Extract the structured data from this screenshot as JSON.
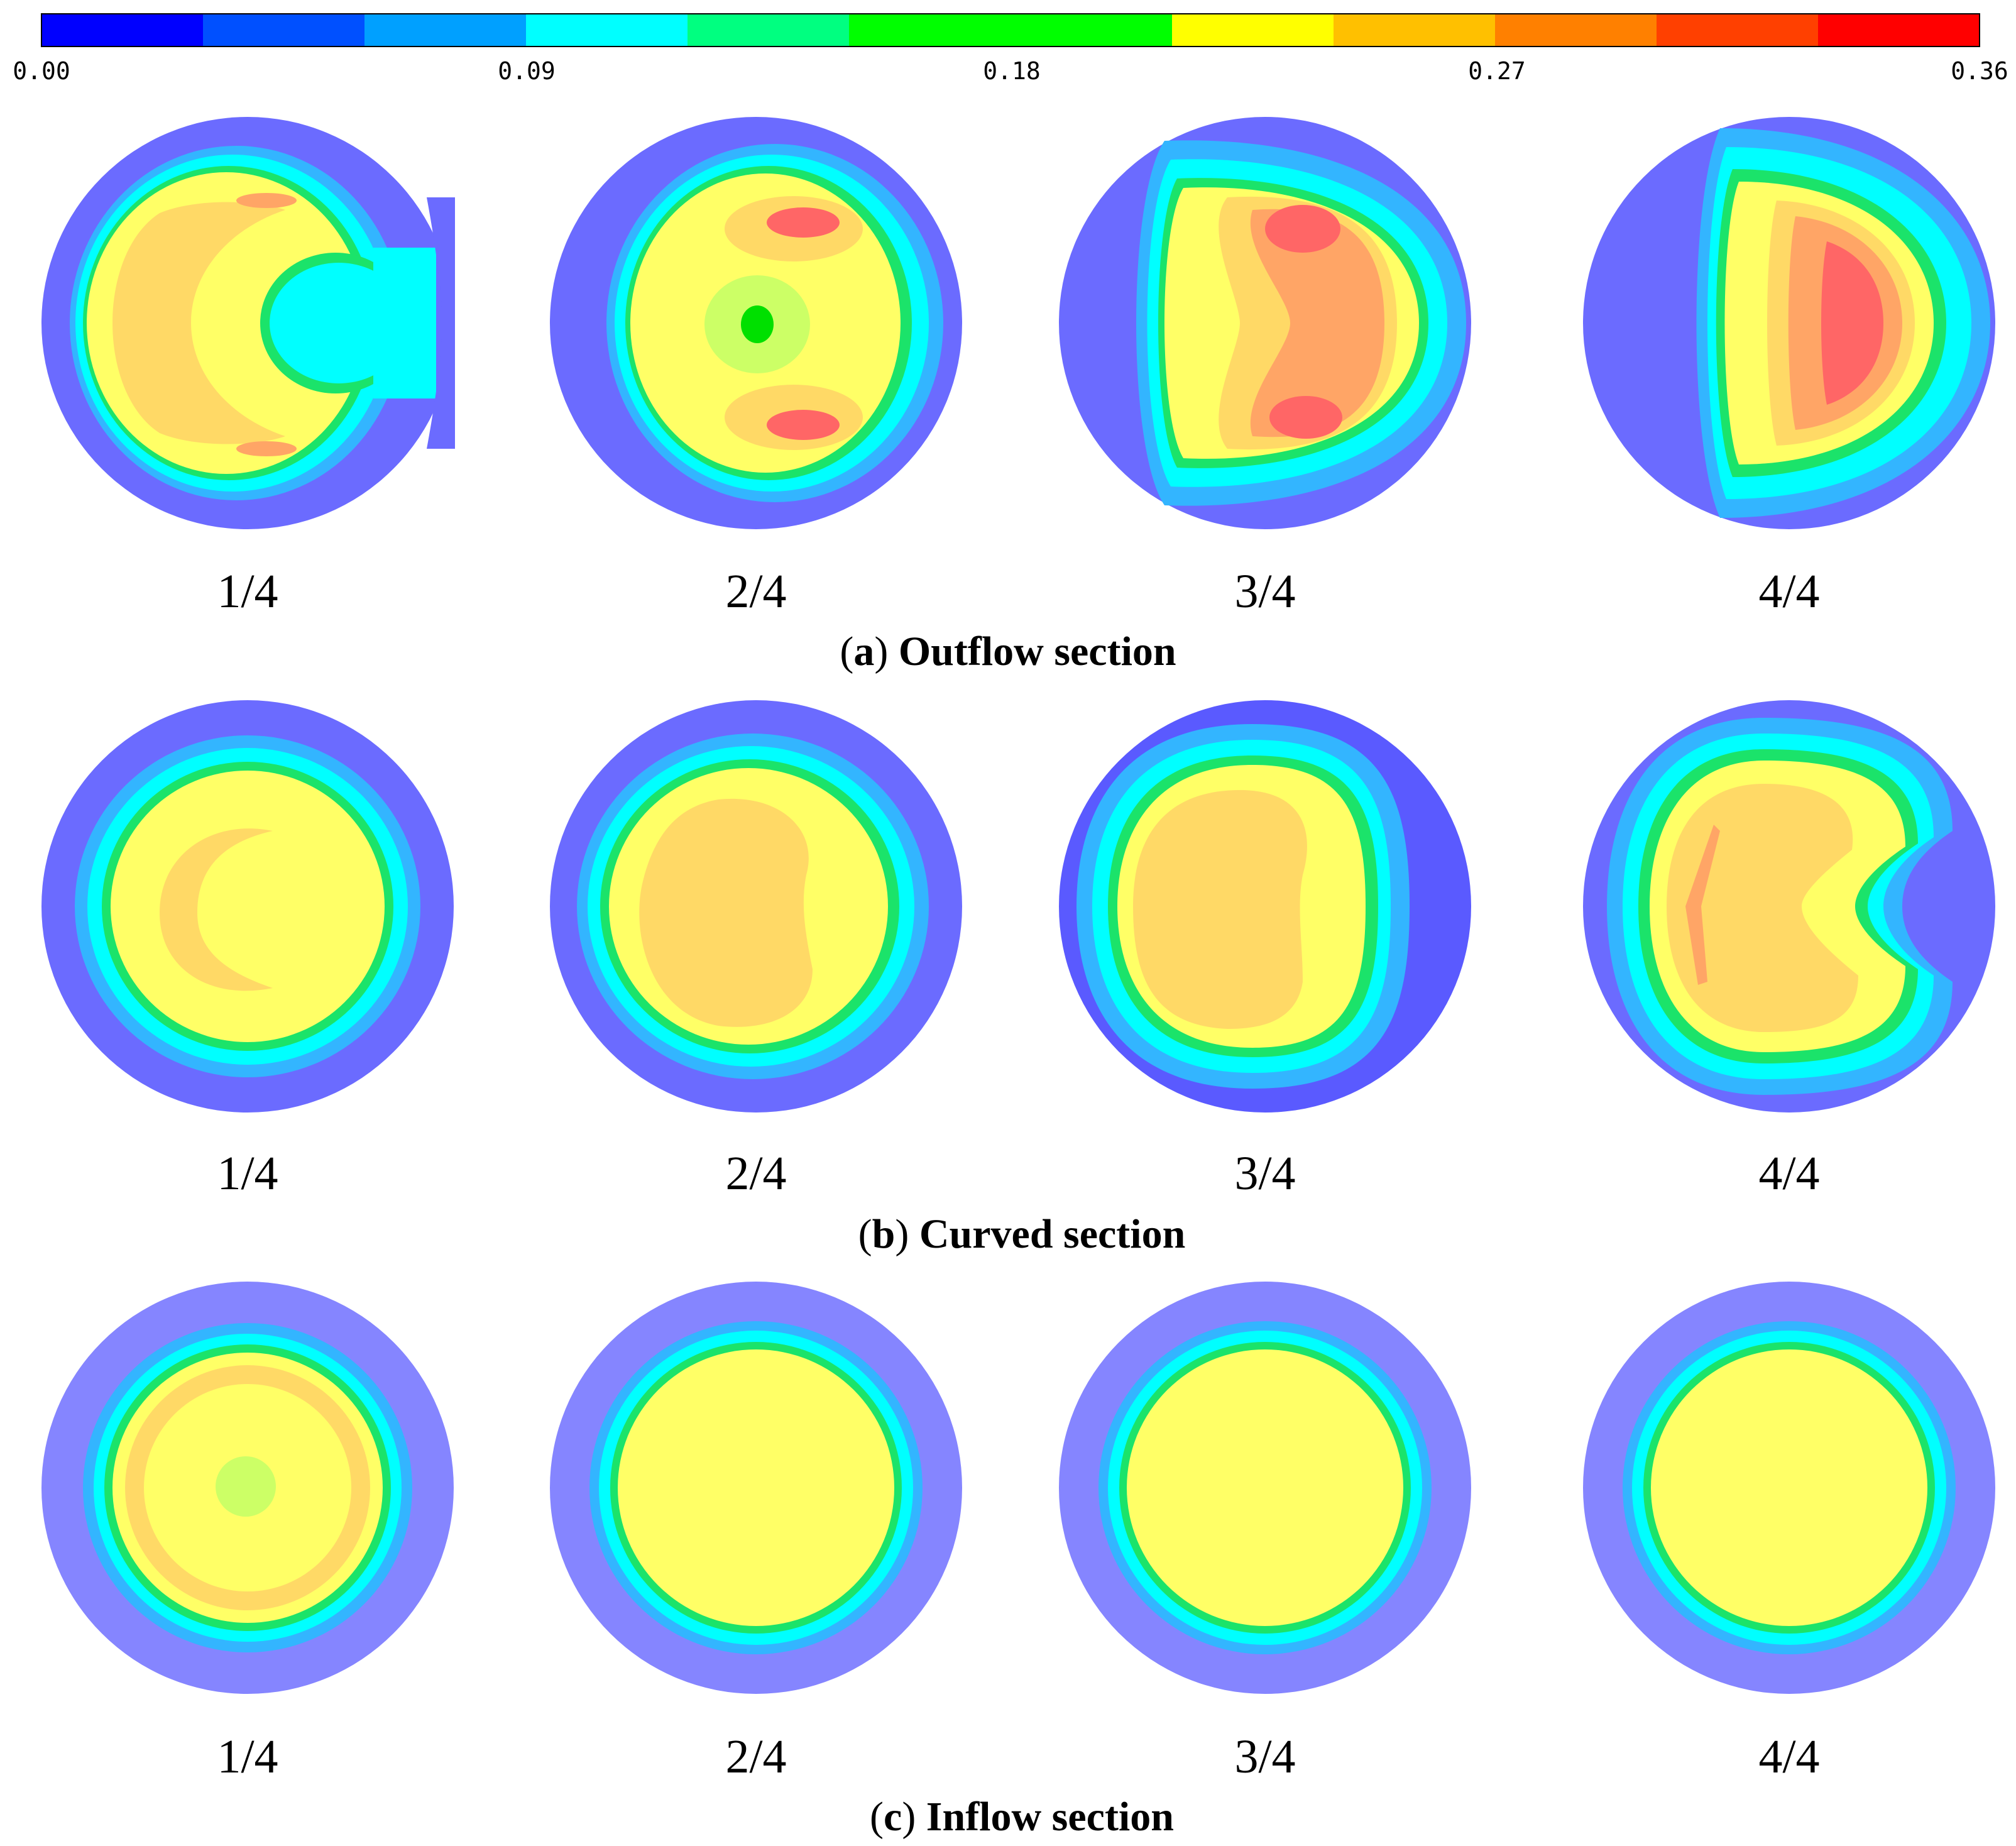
{
  "colorbar": {
    "ticks": [
      "0.00",
      "0.09",
      "0.18",
      "0.27",
      "0.36"
    ],
    "min": 0.0,
    "max": 0.36,
    "colors": [
      "#0000ff",
      "#0050ff",
      "#00a0ff",
      "#00ffff",
      "#00ff80",
      "#00ff00",
      "#00ff00",
      "#ffff00",
      "#ffc000",
      "#ff8000",
      "#ff4000",
      "#ff0000"
    ]
  },
  "rows": [
    {
      "letter": "a",
      "caption_text": "Outflow section",
      "panels": [
        {
          "label": "1/4",
          "shape": "c-ring"
        },
        {
          "label": "2/4",
          "shape": "two-lobes"
        },
        {
          "label": "3/4",
          "shape": "d-two-lobes"
        },
        {
          "label": "4/4",
          "shape": "d-shape"
        }
      ]
    },
    {
      "letter": "b",
      "caption_text": "Curved section",
      "panels": [
        {
          "label": "1/4",
          "shape": "round-crescent"
        },
        {
          "label": "2/4",
          "shape": "round-kidney"
        },
        {
          "label": "3/4",
          "shape": "d-shifted"
        },
        {
          "label": "4/4",
          "shape": "c-notch"
        }
      ]
    },
    {
      "letter": "c",
      "caption_text": "Inflow section",
      "panels": [
        {
          "label": "1/4",
          "shape": "ring-center"
        },
        {
          "label": "2/4",
          "shape": "uniform"
        },
        {
          "label": "3/4",
          "shape": "uniform"
        },
        {
          "label": "4/4",
          "shape": "uniform"
        }
      ]
    }
  ],
  "palette": {
    "outer": "#6b6bff",
    "outer_dark": "#5a5aff",
    "outer_light": "#8585ff",
    "sky": "#33b5ff",
    "cyan": "#00ffff",
    "green": "#1be36a",
    "lime": "#ccff66",
    "yellow": "#ffff66",
    "light_orange": "#ffd966",
    "orange": "#ffa566",
    "red": "#ff6666",
    "bright_green": "#00e000"
  }
}
